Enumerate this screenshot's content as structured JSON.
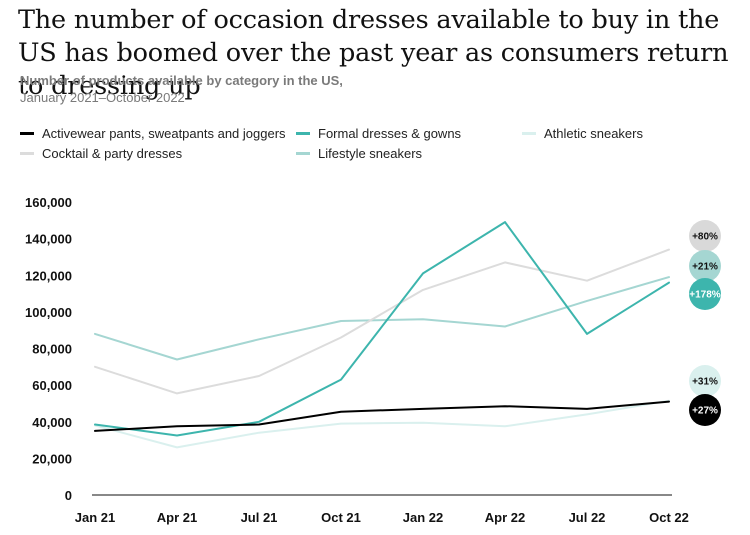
{
  "chart_data": {
    "type": "line",
    "title": "The number of occasion dresses available to buy in the US has boomed over the past year as consumers return to dressing up",
    "subtitle_bold": "Number of products available by category in the US,",
    "subtitle_rest": "January 2021–October 2022",
    "categories": [
      "Jan 21",
      "Apr 21",
      "Jul 21",
      "Oct 21",
      "Jan 22",
      "Apr 22",
      "Jul 22",
      "Oct 22"
    ],
    "ylim": [
      0,
      160000
    ],
    "yticks": [
      0,
      20000,
      40000,
      60000,
      80000,
      100000,
      120000,
      140000,
      160000
    ],
    "ytick_labels": [
      "0",
      "20,000",
      "40,000",
      "60,000",
      "80,000",
      "100,000",
      "120,000",
      "140,000",
      "160,000"
    ],
    "grid": false,
    "legend_position": "top",
    "series": [
      {
        "name": "Lifestyle sneakers",
        "color": "#a5d6d2",
        "values": [
          88000,
          74000,
          85000,
          95000,
          96000,
          92000,
          106000,
          119000
        ]
      },
      {
        "name": "Cocktail & party dresses",
        "color": "#dcdcdc",
        "values": [
          70000,
          55500,
          65000,
          86000,
          112000,
          127000,
          117000,
          134000
        ]
      },
      {
        "name": "Athletic sneakers",
        "color": "#daf0ee",
        "values": [
          38000,
          26000,
          34000,
          39000,
          39500,
          37500,
          44000,
          51500
        ]
      },
      {
        "name": "Formal dresses & gowns",
        "color": "#3db5ad",
        "values": [
          38500,
          32500,
          40000,
          63000,
          121000,
          149000,
          88000,
          116000
        ]
      },
      {
        "name": "Activewear pants, sweatpants and joggers",
        "color": "#000000",
        "values": [
          35000,
          37500,
          38500,
          45500,
          47000,
          48500,
          47000,
          51000
        ]
      }
    ],
    "legend_order": [
      "Activewear pants, sweatpants and joggers",
      "Formal dresses & gowns",
      "Athletic sneakers",
      "Cocktail & party dresses",
      "Lifestyle sneakers"
    ],
    "annotations": [
      {
        "series": "Cocktail & party dresses",
        "label": "+80%",
        "fill": "#d9d9d9",
        "text_color": "#111111"
      },
      {
        "series": "Lifestyle sneakers",
        "label": "+21%",
        "fill": "#a5d6d2",
        "text_color": "#111111"
      },
      {
        "series": "Formal dresses & gowns",
        "label": "+178%",
        "fill": "#3db5ad",
        "text_color": "#ffffff"
      },
      {
        "series": "Athletic sneakers",
        "label": "+31%",
        "fill": "#daf0ee",
        "text_color": "#111111"
      },
      {
        "series": "Activewear pants, sweatpants and joggers",
        "label": "+27%",
        "fill": "#000000",
        "text_color": "#ffffff"
      }
    ]
  }
}
